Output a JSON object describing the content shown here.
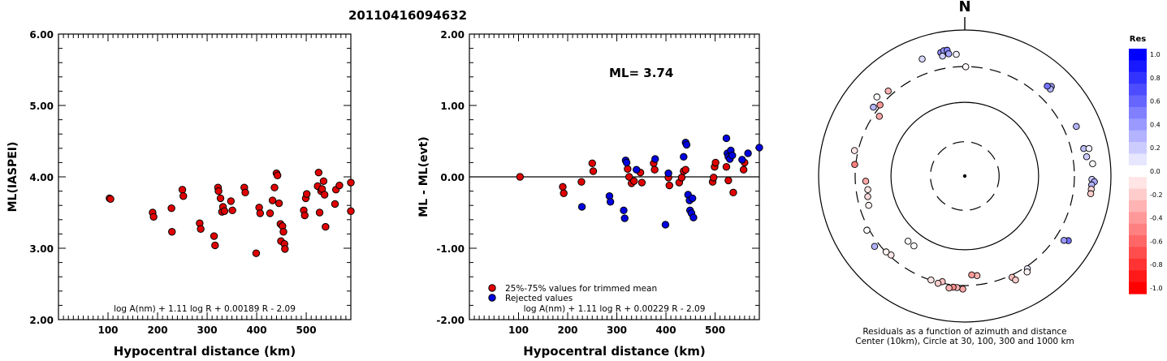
{
  "title": "20110416094632",
  "colors": {
    "red": "#e00000",
    "blue": "#0000e0"
  },
  "chart_data": [
    {
      "type": "scatter",
      "ylabel": "ML(IASPEI)",
      "xlabel": "Hypocentral distance (km)",
      "xlim": [
        0,
        590
      ],
      "ylim": [
        2.0,
        6.0
      ],
      "xticks": [
        "100",
        "200",
        "300",
        "400",
        "500"
      ],
      "yticks": [
        "2.00",
        "3.00",
        "4.00",
        "5.00",
        "6.00"
      ],
      "formula": "log A(nm) + 1.11 log R + 0.00189 R - 2.09",
      "series": [
        {
          "color": "red",
          "points": [
            [
              103,
              3.7
            ],
            [
              105,
              3.69
            ],
            [
              190,
              3.5
            ],
            [
              192,
              3.44
            ],
            [
              228,
              3.56
            ],
            [
              229,
              3.23
            ],
            [
              250,
              3.82
            ],
            [
              252,
              3.73
            ],
            [
              285,
              3.35
            ],
            [
              287,
              3.27
            ],
            [
              314,
              3.17
            ],
            [
              316,
              3.04
            ],
            [
              322,
              3.85
            ],
            [
              323,
              3.8
            ],
            [
              327,
              3.7
            ],
            [
              330,
              3.51
            ],
            [
              332,
              3.58
            ],
            [
              335,
              3.52
            ],
            [
              348,
              3.66
            ],
            [
              351,
              3.53
            ],
            [
              375,
              3.85
            ],
            [
              377,
              3.78
            ],
            [
              399,
              2.93
            ],
            [
              405,
              3.57
            ],
            [
              407,
              3.49
            ],
            [
              427,
              3.49
            ],
            [
              432,
              3.67
            ],
            [
              436,
              3.85
            ],
            [
              440,
              4.05
            ],
            [
              442,
              4.02
            ],
            [
              445,
              3.63
            ],
            [
              448,
              3.34
            ],
            [
              449,
              3.1
            ],
            [
              452,
              3.31
            ],
            [
              454,
              3.23
            ],
            [
              456,
              3.06
            ],
            [
              457,
              2.99
            ],
            [
              495,
              3.53
            ],
            [
              497,
              3.46
            ],
            [
              499,
              3.7
            ],
            [
              501,
              3.76
            ],
            [
              523,
              3.87
            ],
            [
              525,
              4.06
            ],
            [
              527,
              3.5
            ],
            [
              530,
              3.8
            ],
            [
              532,
              3.83
            ],
            [
              535,
              3.94
            ],
            [
              537,
              3.75
            ],
            [
              539,
              3.3
            ],
            [
              558,
              3.62
            ],
            [
              560,
              3.82
            ],
            [
              567,
              3.88
            ],
            [
              592,
              3.92
            ],
            [
              595,
              3.52
            ]
          ]
        }
      ]
    },
    {
      "type": "scatter",
      "ylabel": "ML - ML(evt)",
      "xlabel": "Hypocentral distance (km)",
      "xlim": [
        0,
        590
      ],
      "ylim": [
        -2.0,
        2.0
      ],
      "xticks": [
        "100",
        "200",
        "300",
        "400",
        "500"
      ],
      "yticks": [
        "-2.00",
        "-1.00",
        "0.00",
        "1.00",
        "2.00"
      ],
      "annotation": "ML= 3.74",
      "formula": "log A(nm) + 1.11 log R + 0.00229 R - 2.09",
      "legend": [
        "25%-75% values for trimmed mean",
        "Rejected values"
      ],
      "series": [
        {
          "color": "red",
          "points": [
            [
              103,
              0.0
            ],
            [
              190,
              -0.14
            ],
            [
              192,
              -0.23
            ],
            [
              228,
              -0.07
            ],
            [
              250,
              0.19
            ],
            [
              252,
              0.08
            ],
            [
              322,
              0.11
            ],
            [
              325,
              0.0
            ],
            [
              330,
              -0.09
            ],
            [
              335,
              -0.06
            ],
            [
              348,
              0.06
            ],
            [
              351,
              -0.08
            ],
            [
              375,
              0.19
            ],
            [
              377,
              0.1
            ],
            [
              405,
              -0.01
            ],
            [
              407,
              -0.12
            ],
            [
              427,
              -0.08
            ],
            [
              432,
              -0.01
            ],
            [
              436,
              0.08
            ],
            [
              440,
              0.1
            ],
            [
              495,
              -0.07
            ],
            [
              497,
              -0.01
            ],
            [
              499,
              0.14
            ],
            [
              501,
              0.2
            ],
            [
              523,
              0.14
            ],
            [
              527,
              -0.05
            ],
            [
              537,
              -0.22
            ],
            [
              558,
              0.1
            ],
            [
              560,
              0.2
            ]
          ]
        },
        {
          "color": "blue",
          "points": [
            [
              229,
              -0.42
            ],
            [
              285,
              -0.27
            ],
            [
              287,
              -0.35
            ],
            [
              314,
              -0.47
            ],
            [
              316,
              -0.58
            ],
            [
              318,
              0.23
            ],
            [
              320,
              0.2
            ],
            [
              340,
              0.1
            ],
            [
              378,
              0.25
            ],
            [
              399,
              -0.67
            ],
            [
              405,
              0.05
            ],
            [
              436,
              0.28
            ],
            [
              440,
              0.48
            ],
            [
              442,
              0.45
            ],
            [
              445,
              -0.25
            ],
            [
              448,
              -0.33
            ],
            [
              449,
              -0.47
            ],
            [
              452,
              -0.51
            ],
            [
              454,
              -0.3
            ],
            [
              456,
              -0.57
            ],
            [
              523,
              0.54
            ],
            [
              525,
              0.33
            ],
            [
              527,
              0.28
            ],
            [
              530,
              0.25
            ],
            [
              532,
              0.37
            ],
            [
              535,
              0.3
            ],
            [
              555,
              0.24
            ],
            [
              567,
              0.33
            ],
            [
              592,
              0.41
            ]
          ]
        }
      ]
    },
    {
      "type": "polar-scatter",
      "north_label": "N",
      "caption_line1": "Residuals as a function of azimuth and distance",
      "caption_line2": "Center (10km), Circle at 30, 100, 300 and 1000 km",
      "colorbar_title": "Res",
      "colorbar_ticks": [
        "1.0",
        "0.8",
        "0.6",
        "0.4",
        "0.2",
        "0.0",
        "-0.2",
        "-0.4",
        "-0.6",
        "-0.8",
        "-1.0"
      ],
      "points": [
        {
          "az": 0.5,
          "r": 0.86,
          "res": -0.02
        },
        {
          "az": 349,
          "r": 0.99,
          "res": 0.45
        },
        {
          "az": 350.5,
          "r": 1.0,
          "res": 0.4
        },
        {
          "az": 352,
          "r": 1.0,
          "res": 0.5
        },
        {
          "az": 352.5,
          "r": 0.97,
          "res": 0.35
        },
        {
          "az": 349.5,
          "r": 0.96,
          "res": 0.2
        },
        {
          "az": 44,
          "r": 0.98,
          "res": 0.4
        },
        {
          "az": 44.5,
          "r": 0.96,
          "res": 0.3
        },
        {
          "az": 42.5,
          "r": 0.96,
          "res": 0.55
        },
        {
          "az": 66,
          "r": 0.96,
          "res": 0.3
        },
        {
          "az": 77,
          "r": 0.96,
          "res": 0.25
        },
        {
          "az": 77.5,
          "r": 1.0,
          "res": 0.05
        },
        {
          "az": 81,
          "r": 0.97,
          "res": 0.2
        },
        {
          "az": 84.5,
          "r": 1.01,
          "res": -0.02
        },
        {
          "az": 91.5,
          "r": 1.0,
          "res": 0.2
        },
        {
          "az": 92.5,
          "r": 1.02,
          "res": 0.35
        },
        {
          "az": 94,
          "r": 1.0,
          "res": 0.3
        },
        {
          "az": 96,
          "r": 1.0,
          "res": -0.15
        },
        {
          "az": 98,
          "r": 1.0,
          "res": -0.2
        },
        {
          "az": 122,
          "r": 0.96,
          "res": 0.55
        },
        {
          "az": 123,
          "r": 0.93,
          "res": 0.4
        },
        {
          "az": 146,
          "r": 0.88,
          "res": 0.1
        },
        {
          "az": 147,
          "r": 0.9,
          "res": -0.05
        },
        {
          "az": 155,
          "r": 0.88,
          "res": -0.25
        },
        {
          "az": 154,
          "r": 0.91,
          "res": -0.2
        },
        {
          "az": 173,
          "r": 0.79,
          "res": -0.3
        },
        {
          "az": 176,
          "r": 0.78,
          "res": -0.4
        },
        {
          "az": 181,
          "r": 0.89,
          "res": -0.35
        },
        {
          "az": 184,
          "r": 0.88,
          "res": -0.3
        },
        {
          "az": 186,
          "r": 0.88,
          "res": -0.45
        },
        {
          "az": 188,
          "r": 0.89,
          "res": -0.3
        },
        {
          "az": 192,
          "r": 0.85,
          "res": -0.25
        },
        {
          "az": 194,
          "r": 0.87,
          "res": -0.2
        },
        {
          "az": 198,
          "r": 0.86,
          "res": -0.1
        },
        {
          "az": 216,
          "r": 0.68,
          "res": 0.0
        },
        {
          "az": 221,
          "r": 0.68,
          "res": -0.02
        },
        {
          "az": 223,
          "r": 0.85,
          "res": -0.1
        },
        {
          "az": 226,
          "r": 0.86,
          "res": -0.05
        },
        {
          "az": 232,
          "r": 0.9,
          "res": 0.3
        },
        {
          "az": 241,
          "r": 0.88,
          "res": 0.0
        },
        {
          "az": 253,
          "r": 0.79,
          "res": -0.05
        },
        {
          "az": 258,
          "r": 0.78,
          "res": -0.15
        },
        {
          "az": 262,
          "r": 0.77,
          "res": -0.1
        },
        {
          "az": 267,
          "r": 0.78,
          "res": -0.35
        },
        {
          "az": 276,
          "r": 0.87,
          "res": -0.5
        },
        {
          "az": 283,
          "r": 0.89,
          "res": -0.1
        },
        {
          "az": 305,
          "r": 0.82,
          "res": -0.35
        },
        {
          "az": 307,
          "r": 0.9,
          "res": 0.3
        },
        {
          "az": 310,
          "r": 0.87,
          "res": -0.4
        },
        {
          "az": 312,
          "r": 0.93,
          "res": 0.0
        },
        {
          "az": 318,
          "r": 0.9,
          "res": -0.3
        },
        {
          "az": 340,
          "r": 0.98,
          "res": 0.15
        },
        {
          "az": 356,
          "r": 0.96,
          "res": 0.05
        }
      ]
    }
  ]
}
